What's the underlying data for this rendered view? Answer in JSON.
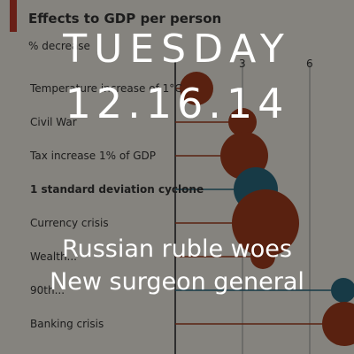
{
  "tile": {
    "day": "TUESDAY",
    "date": "12.16.14",
    "subhead_1": "Russian ruble woes",
    "subhead_2": "New surgeon general"
  },
  "background_chart": {
    "title": "Effects to GDP per person",
    "subtitle": "% decrease",
    "x_ticks": [
      "3",
      "6"
    ],
    "rows": [
      {
        "label": "Temperature increase of 1°C",
        "color": "#a33c1e",
        "size": 19
      },
      {
        "label": "Civil War",
        "color": "#a33c1e",
        "size": 16
      },
      {
        "label": "Tax increase 1% of GDP",
        "color": "#a33c1e",
        "size": 27
      },
      {
        "label": "1 standard deviation cyclone",
        "color": "#2b6b80",
        "size": 25,
        "bold": true
      },
      {
        "label": "Currency crisis",
        "color": "#a33c1e",
        "size": 38
      },
      {
        "label": "Wealth...",
        "color": "#a33c1e",
        "size": 14
      },
      {
        "label": "90th...",
        "color": "#2b6b80",
        "size": 14
      },
      {
        "label": "Banking crisis",
        "color": "#a33c1e",
        "size": 25
      }
    ],
    "colors": {
      "paper": "#f3efe6",
      "accent": "#c0392b",
      "red": "#a33c1e",
      "blue": "#2b6b80",
      "text": "#333333"
    }
  }
}
